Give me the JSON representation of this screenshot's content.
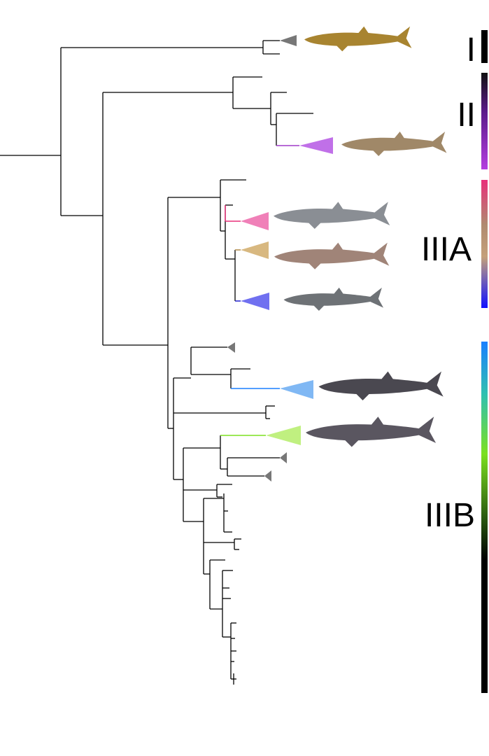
{
  "clades": [
    {
      "label": "I"
    },
    {
      "label": "II"
    },
    {
      "label": "IIIA"
    },
    {
      "label": "IIIB"
    }
  ]
}
